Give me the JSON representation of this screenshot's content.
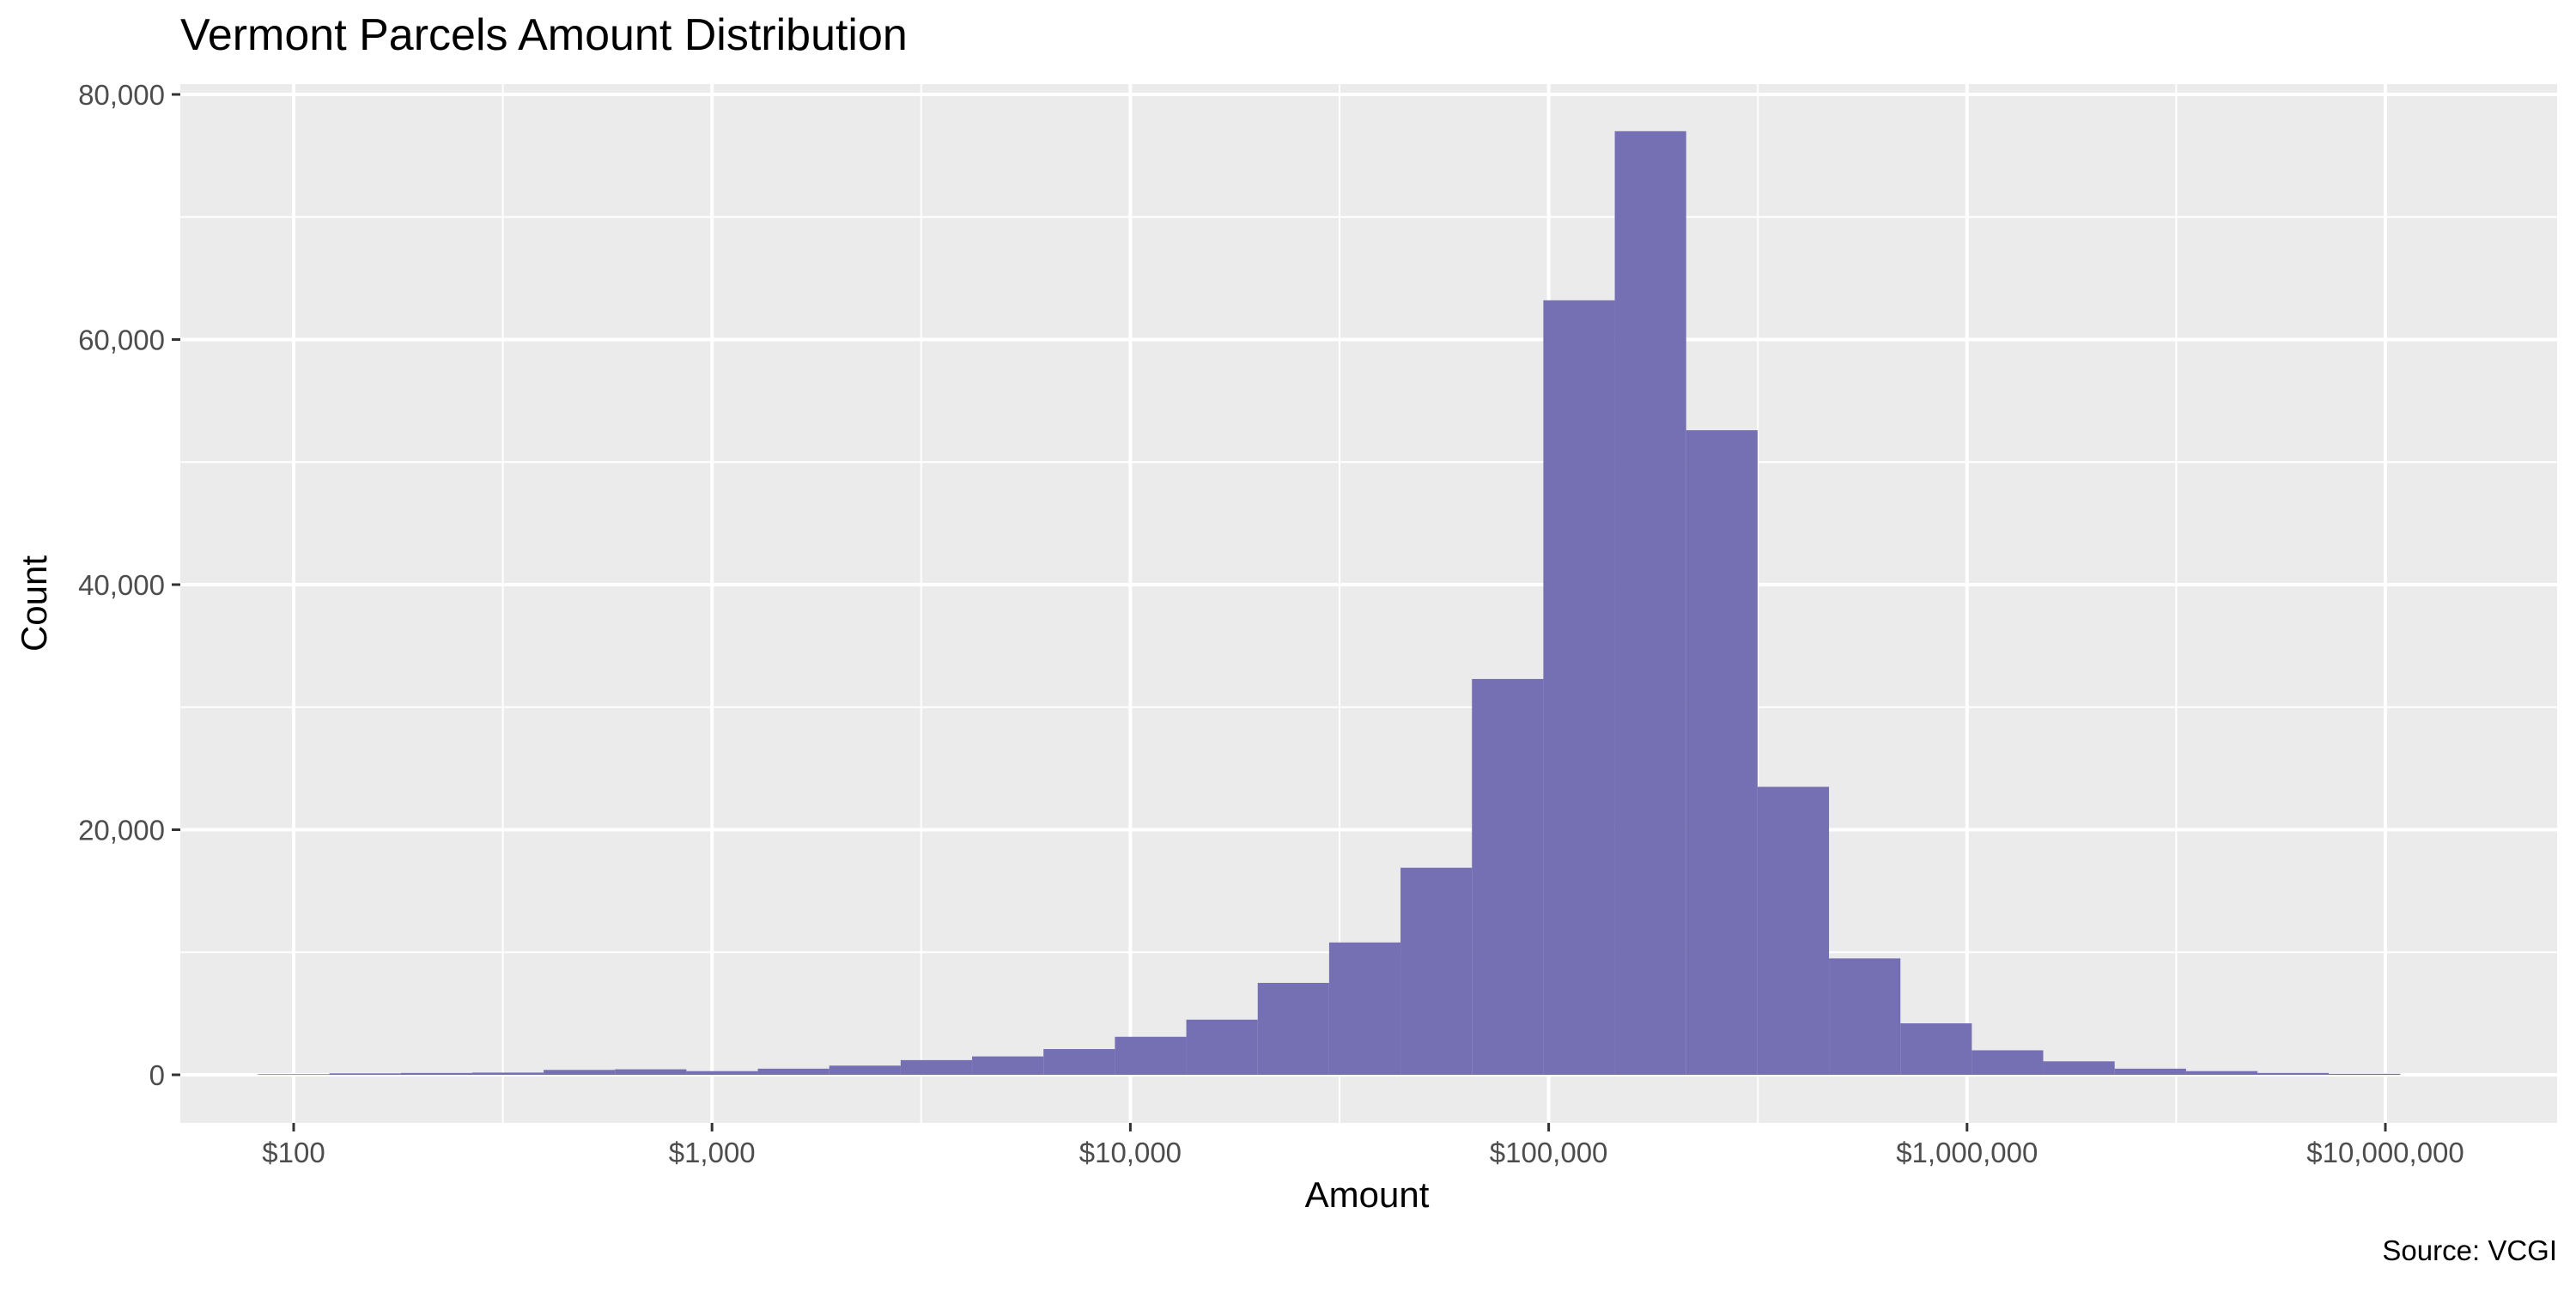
{
  "chart_data": {
    "type": "bar",
    "title": "Vermont Parcels Amount Distribution",
    "xlabel": "Amount",
    "ylabel": "Count",
    "caption": "Source: VCGI",
    "x_scale": "log10",
    "xlim": [
      100,
      10000000
    ],
    "ylim": [
      0,
      80000
    ],
    "x_tick_values": [
      100,
      1000,
      10000,
      100000,
      1000000,
      10000000
    ],
    "x_tick_labels": [
      "$100",
      "$1,000",
      "$10,000",
      "$100,000",
      "$1,000,000",
      "$10,000,000"
    ],
    "y_tick_values": [
      0,
      20000,
      40000,
      60000,
      80000
    ],
    "y_tick_labels": [
      "0",
      "20,000",
      "40,000",
      "60,000",
      "80,000"
    ],
    "bin_width_log10": 0.1707,
    "bins_log10_center": [
      2.0,
      2.1707,
      2.3414,
      2.5121,
      2.6828,
      2.8535,
      3.0242,
      3.1949,
      3.3656,
      3.5363,
      3.707,
      3.8777,
      4.0484,
      4.2191,
      4.3898,
      4.5605,
      4.7312,
      4.9019,
      5.0726,
      5.2433,
      5.414,
      5.5847,
      5.7554,
      5.9261,
      6.0968,
      6.2675,
      6.4382,
      6.6089,
      6.7796,
      6.9503
    ],
    "values": [
      50,
      120,
      150,
      180,
      400,
      450,
      300,
      500,
      750,
      1200,
      1500,
      2100,
      3100,
      4500,
      7500,
      10800,
      16900,
      32300,
      63200,
      77000,
      52600,
      23500,
      9500,
      4200,
      2000,
      1100,
      500,
      300,
      150,
      80
    ],
    "bar_color": "#7570b3",
    "panel_color": "#ebebeb",
    "grid": true
  }
}
